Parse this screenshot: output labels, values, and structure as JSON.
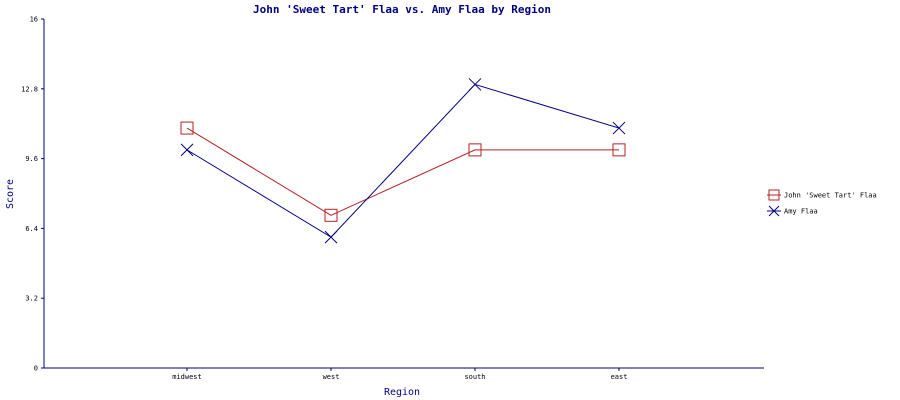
{
  "chart_data": {
    "type": "line",
    "title": "John 'Sweet Tart' Flaa vs. Amy Flaa by Region",
    "xlabel": "Region",
    "ylabel": "Score",
    "categories": [
      "midwest",
      "west",
      "south",
      "east"
    ],
    "ylim": [
      0,
      16
    ],
    "yticks": [
      "0",
      "3.2",
      "6.4",
      "9.6",
      "12.8",
      "16"
    ],
    "grid": false,
    "legend_position": "right",
    "series": [
      {
        "name": "John 'Sweet Tart' Flaa",
        "values": [
          11,
          7,
          10,
          10
        ],
        "color": "#b22222",
        "marker": "square"
      },
      {
        "name": "Amy Flaa",
        "values": [
          10,
          6,
          13,
          11
        ],
        "color": "#000080",
        "marker": "x"
      }
    ]
  }
}
